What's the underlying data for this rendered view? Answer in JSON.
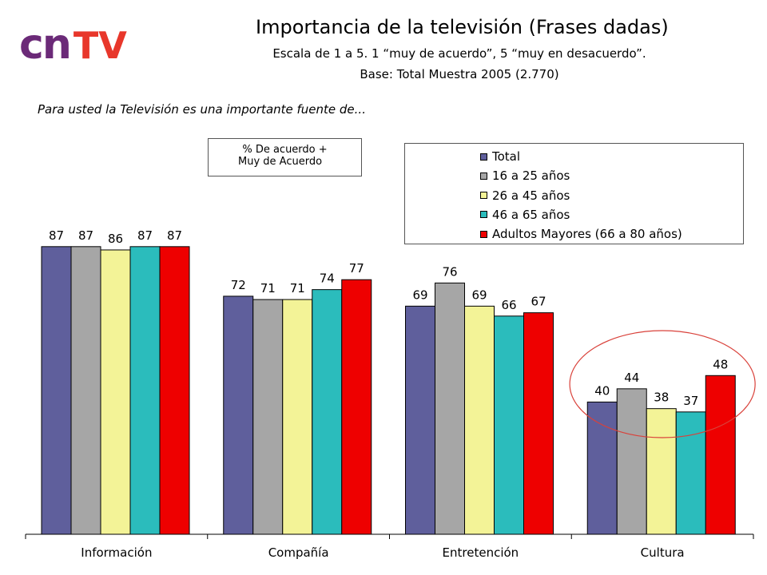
{
  "logo": {
    "cn": "cn",
    "tv": "TV"
  },
  "header": {
    "title": "Importancia de la televisión (Frases dadas)",
    "subtitle": "Escala de 1 a 5. 1 “muy de acuerdo”, 5 “muy en desacuerdo”.",
    "base": "Base: Total Muestra 2005 (2.770)"
  },
  "question": "Para usted la Televisión es una importante fuente de...",
  "note": {
    "line1": "% De acuerdo +",
    "line2": "Muy de Acuerdo"
  },
  "colors": {
    "total": "#5f5f9c",
    "g16_25": "#a6a6a6",
    "g26_45": "#f3f397",
    "g46_65": "#2bbcbc",
    "adultos": "#ee0000",
    "highlight_circle": "#d9413a"
  },
  "chart_data": {
    "type": "bar",
    "categories": [
      "Información",
      "Compañía",
      "Entretención",
      "Cultura"
    ],
    "series": [
      {
        "name": "Total",
        "values": [
          87,
          72,
          69,
          40
        ]
      },
      {
        "name": "16 a 25 años",
        "values": [
          87,
          71,
          76,
          44
        ]
      },
      {
        "name": "26 a 45 años",
        "values": [
          86,
          71,
          69,
          38
        ]
      },
      {
        "name": "46 a 65 años",
        "values": [
          87,
          74,
          66,
          37
        ]
      },
      {
        "name": "Adultos Mayores (66 a 80 años)",
        "values": [
          87,
          77,
          67,
          48
        ]
      }
    ],
    "ylim": [
      0,
      100
    ],
    "grid": false,
    "legend_position": "top-right",
    "highlighted_category": "Cultura"
  }
}
